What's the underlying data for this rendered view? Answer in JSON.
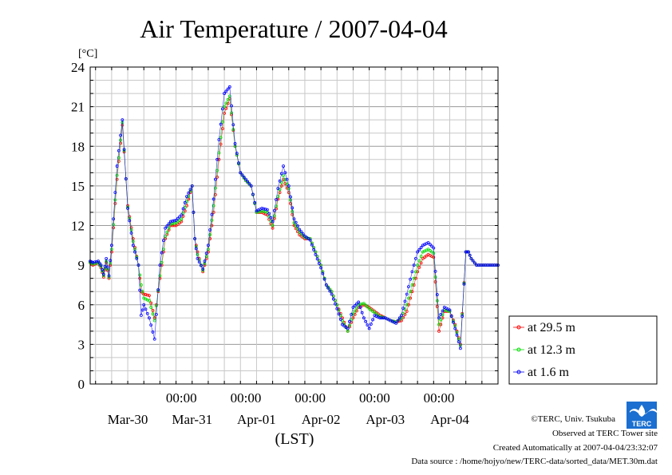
{
  "chart_data": {
    "type": "line",
    "title": "Air Temperature / 2007-04-04",
    "ylabel": "[°C]",
    "xlabel": "(LST)",
    "ylim": [
      0,
      24
    ],
    "yticks": [
      "0",
      "3",
      "6",
      "9",
      "12",
      "15",
      "18",
      "21",
      "24"
    ],
    "xlim_days": [
      "Mar-29 14:00",
      "Apr-04 22:00"
    ],
    "day_labels": [
      "Mar-30",
      "Mar-31",
      "Apr-01",
      "Apr-02",
      "Apr-03",
      "Apr-04"
    ],
    "midnight_label": "00:00",
    "grid": true,
    "legend_position": "bottom-right-outside",
    "legend": [
      {
        "name": "at 29.5 m",
        "color": "#ff0000"
      },
      {
        "name": "at 12.3 m",
        "color": "#00dd00"
      },
      {
        "name": "at 1.6 m",
        "color": "#0000ff"
      }
    ],
    "base_series_hours_from_mar30_0000": [
      -10,
      -9,
      -7,
      -6,
      -5,
      -4,
      -3,
      -2,
      0,
      2,
      4,
      6,
      8,
      9,
      10,
      12,
      14,
      16,
      18,
      20,
      22,
      24,
      26,
      28,
      29,
      30,
      32,
      34,
      36,
      38,
      40,
      42,
      44,
      46,
      48,
      50,
      52,
      54,
      56,
      58,
      60,
      62,
      64,
      66,
      68,
      70,
      72,
      74,
      76,
      78,
      80,
      82,
      84,
      86,
      88,
      90,
      92,
      94,
      96,
      98,
      100,
      102,
      104,
      106,
      108,
      110,
      112,
      114,
      116,
      118,
      120,
      122,
      124,
      126,
      128,
      130,
      131,
      132,
      134,
      136,
      138,
      140,
      142,
      144,
      146
    ],
    "series": [
      {
        "name": "at 29.5 m",
        "values": [
          9.2,
          9.0,
          9.2,
          8.8,
          8.1,
          9.2,
          8.0,
          10.0,
          15.5,
          19.6,
          13.5,
          11.0,
          9.0,
          7.0,
          6.8,
          6.7,
          5.0,
          8.0,
          11.0,
          12.0,
          12.0,
          12.3,
          13.5,
          15.0,
          11.0,
          10.0,
          8.5,
          10.0,
          13.0,
          17.0,
          20.5,
          21.6,
          18.0,
          16.0,
          15.4,
          15.0,
          13.0,
          13.0,
          12.8,
          11.8,
          14.0,
          15.5,
          14.5,
          12.0,
          11.3,
          11.0,
          11.0,
          10.0,
          9.0,
          7.5,
          7.0,
          6.0,
          5.0,
          4.0,
          5.0,
          5.8,
          6.0,
          5.8,
          5.5,
          5.2,
          5.0,
          4.8,
          4.7,
          4.8,
          5.5,
          7.0,
          8.5,
          9.5,
          9.8,
          9.6,
          4.0,
          5.5,
          5.5,
          4.5,
          3.0,
          10.0,
          10.0,
          9.5,
          9.0,
          9.0,
          9.0,
          9.0,
          9.0,
          9.0,
          9.0
        ]
      },
      {
        "name": "at 12.3 m",
        "values": [
          9.2,
          9.1,
          9.2,
          8.9,
          8.2,
          9.3,
          8.1,
          10.2,
          15.8,
          19.8,
          13.4,
          10.8,
          9.0,
          7.5,
          6.5,
          6.3,
          4.8,
          8.2,
          11.2,
          12.1,
          12.2,
          12.5,
          13.8,
          15.0,
          11.0,
          9.8,
          8.6,
          10.2,
          13.5,
          17.5,
          21.0,
          21.8,
          18.0,
          16.0,
          15.4,
          15.0,
          13.0,
          13.1,
          13.0,
          12.0,
          14.2,
          15.8,
          14.8,
          12.2,
          11.5,
          11.1,
          11.0,
          10.0,
          9.0,
          7.5,
          7.0,
          6.0,
          4.8,
          4.0,
          5.3,
          6.0,
          6.1,
          5.7,
          5.4,
          5.1,
          5.0,
          4.8,
          4.7,
          5.0,
          6.0,
          7.5,
          9.0,
          10.0,
          10.2,
          9.9,
          4.5,
          5.6,
          5.5,
          4.4,
          2.9,
          10.0,
          10.0,
          9.5,
          9.0,
          9.0,
          9.0,
          9.0,
          9.0,
          9.0,
          9.0
        ]
      },
      {
        "name": "at 1.6 m",
        "values": [
          9.3,
          9.2,
          9.3,
          9.0,
          8.3,
          9.5,
          8.2,
          10.5,
          16.5,
          20.0,
          13.3,
          10.5,
          9.0,
          5.2,
          6.0,
          5.0,
          3.4,
          9.0,
          11.8,
          12.3,
          12.4,
          12.8,
          14.2,
          15.0,
          11.0,
          9.5,
          8.7,
          10.5,
          14.0,
          18.5,
          22.0,
          22.5,
          18.2,
          16.0,
          15.5,
          15.0,
          13.1,
          13.3,
          13.2,
          12.3,
          14.8,
          16.5,
          15.0,
          12.5,
          11.7,
          11.2,
          10.9,
          9.8,
          8.8,
          7.5,
          6.8,
          5.7,
          4.5,
          4.2,
          5.8,
          6.2,
          5.0,
          4.2,
          5.2,
          5.0,
          5.0,
          4.8,
          4.6,
          5.2,
          6.8,
          8.5,
          10.0,
          10.5,
          10.7,
          10.3,
          5.0,
          5.8,
          5.6,
          4.2,
          2.7,
          10.0,
          10.0,
          9.5,
          9.0,
          9.0,
          9.0,
          9.0,
          9.0,
          9.0,
          9.0
        ]
      }
    ]
  },
  "footer": {
    "copyright": "©TERC, Univ. Tsukuba",
    "observed": "Observed at TERC Tower site",
    "created": "Created Automatically at 2007-04-04/23:32:07",
    "source": "Data source : /home/hojyo/new/TERC-data/sorted_data/MET.30m.dat",
    "logo_text": "TERC"
  }
}
